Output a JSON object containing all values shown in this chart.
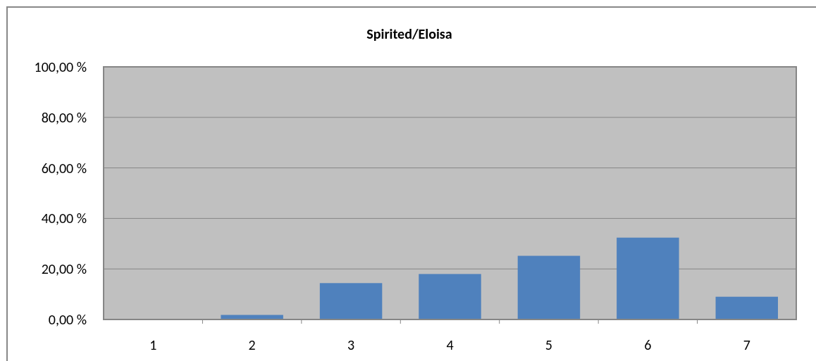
{
  "chart_data": {
    "type": "bar",
    "title": "Spirited/Eloisa",
    "categories": [
      "1",
      "2",
      "3",
      "4",
      "5",
      "6",
      "7"
    ],
    "values": [
      0,
      1.8,
      14.4,
      18.0,
      25.2,
      32.4,
      9.0
    ],
    "color": "#4f81bd",
    "ylim": [
      0,
      100
    ],
    "yticks": [
      {
        "value": 0,
        "label": "0,00 %"
      },
      {
        "value": 20,
        "label": "20,00 %"
      },
      {
        "value": 40,
        "label": "40,00 %"
      },
      {
        "value": 60,
        "label": "60,00 %"
      },
      {
        "value": 80,
        "label": "80,00 %"
      },
      {
        "value": 100,
        "label": "100,00 %"
      }
    ],
    "grid": "y"
  }
}
